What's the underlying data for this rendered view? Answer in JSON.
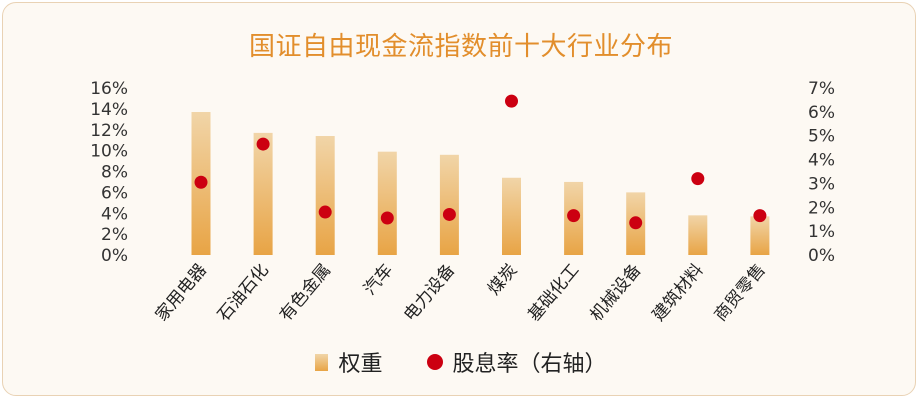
{
  "chart_data": {
    "type": "bar",
    "title": "国证自由现金流指数前十大行业分布",
    "categories": [
      "家用电器",
      "石油石化",
      "有色金属",
      "汽车",
      "电力设备",
      "煤炭",
      "基础化工",
      "机械设备",
      "建筑材料",
      "商贸零售"
    ],
    "series": [
      {
        "name": "权重",
        "type": "bar",
        "axis": "left",
        "unit": "%",
        "values": [
          13.7,
          11.7,
          11.4,
          9.9,
          9.6,
          7.4,
          7.0,
          6.0,
          3.8,
          3.7
        ],
        "color": "#e8a445"
      },
      {
        "name": "股息率（右轴）",
        "type": "scatter",
        "axis": "right",
        "unit": "%",
        "values": [
          3.05,
          4.65,
          1.8,
          1.55,
          1.7,
          6.45,
          1.65,
          1.35,
          3.2,
          1.65
        ],
        "color": "#cc0011"
      }
    ],
    "y_left": {
      "ylim": [
        0,
        16
      ],
      "ticks": [
        0,
        2,
        4,
        6,
        8,
        10,
        12,
        14,
        16
      ],
      "tick_labels": [
        "0%",
        "2%",
        "4%",
        "6%",
        "8%",
        "10%",
        "12%",
        "14%",
        "16%"
      ]
    },
    "y_right": {
      "ylim": [
        0,
        7
      ],
      "ticks": [
        0,
        1,
        2,
        3,
        4,
        5,
        6,
        7
      ],
      "tick_labels": [
        "0%",
        "1%",
        "2%",
        "3%",
        "4%",
        "5%",
        "6%",
        "7%"
      ]
    },
    "grid": false,
    "legend_position": "bottom"
  },
  "colors": {
    "title": "#e28e2c",
    "bar_top": "#f1d5a8",
    "bar_bottom": "#e8a445",
    "dot": "#cc0011",
    "background": "#fdf9f3",
    "border": "#e9d2b4"
  },
  "legend": {
    "bar_label": "权重",
    "dot_label": "股息率（右轴）"
  }
}
